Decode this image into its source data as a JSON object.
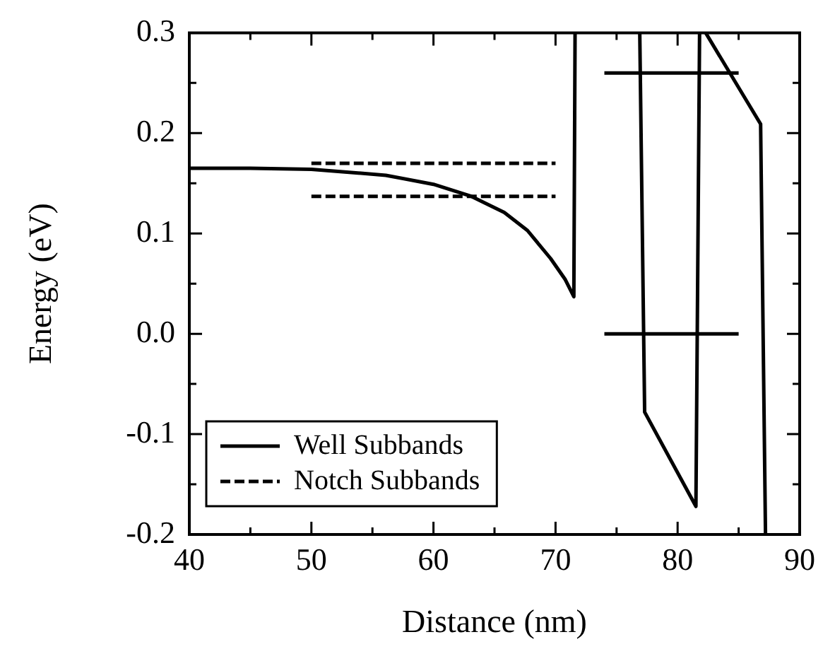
{
  "chart_data": {
    "type": "line",
    "xlabel": "Distance (nm)",
    "ylabel": "Energy (eV)",
    "xlim": [
      40,
      90
    ],
    "ylim": [
      -0.2,
      0.3
    ],
    "xticks": [
      40,
      {
        "value": 45,
        "label": null
      },
      50,
      {
        "value": 55,
        "label": null
      },
      60,
      {
        "value": 65,
        "label": null
      },
      70,
      {
        "value": 75,
        "label": null
      },
      80,
      {
        "value": 85,
        "label": null
      },
      90
    ],
    "yticks": [
      -0.2,
      {
        "value": -0.15,
        "label": null
      },
      -0.1,
      {
        "value": -0.05,
        "label": null
      },
      {
        "value": 0,
        "label": "0.0"
      },
      {
        "value": 0.05,
        "label": null
      },
      0.1,
      {
        "value": 0.15,
        "label": null
      },
      0.2,
      {
        "value": 0.25,
        "label": null
      },
      0.3
    ],
    "series": [
      {
        "color": "#000000",
        "line_style": "solid",
        "x": [
          40,
          45,
          50,
          56.1,
          60,
          63.1,
          65.8,
          67.7,
          69.6,
          70.8,
          71.5,
          71.6,
          74,
          76.9,
          77.3,
          81.5,
          81.8,
          82,
          82.3,
          86.8,
          87.2
        ],
        "values": [
          0.165,
          0.165,
          0.164,
          0.158,
          0.149,
          0.137,
          0.121,
          0.103,
          0.075,
          0.054,
          0.037,
          0.3,
          null,
          0.3,
          -0.078,
          -0.172,
          0.3,
          null,
          0.3,
          0.209,
          -0.2
        ]
      },
      {
        "name": "Well Subbands",
        "color": "#000000",
        "line_style": "solid",
        "x": [
          74,
          85
        ],
        "values": [
          0.26,
          0.26
        ]
      },
      {
        "color": "#000000",
        "line_style": "solid",
        "x": [
          74,
          85
        ],
        "values": [
          0,
          0
        ]
      },
      {
        "name": "Notch Subbands",
        "color": "#000000",
        "line_style": "dashed",
        "x": [
          50,
          70
        ],
        "values": [
          0.17,
          0.17
        ]
      },
      {
        "color": "#000000",
        "line_style": "dashed",
        "x": [
          50,
          70
        ],
        "values": [
          0.137,
          0.137
        ]
      }
    ],
    "legend": "bottom left",
    "grid": false,
    "marker": "none"
  }
}
